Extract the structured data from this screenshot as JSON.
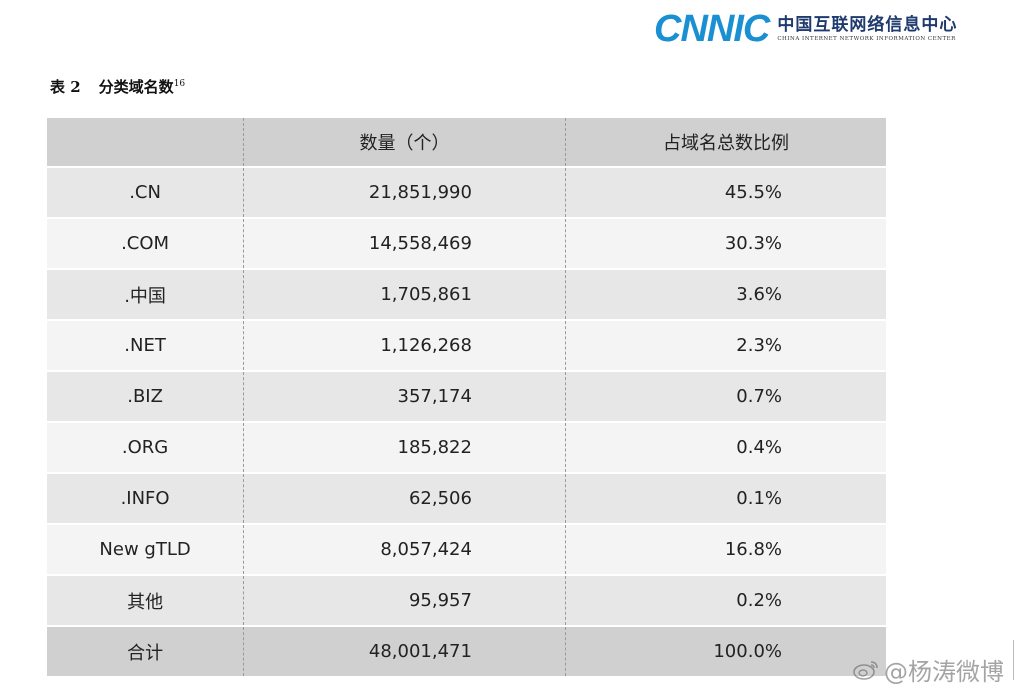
{
  "header": {
    "logo_mark": "CNNIC",
    "logo_cn": "中国互联网络信息中心",
    "logo_en": "CHINA INTERNET NETWORK INFORMATION CENTER"
  },
  "caption": {
    "number": "表 2",
    "title": "分类域名数",
    "footnote": "16"
  },
  "table": {
    "headers": [
      "",
      "数量（个）",
      "占域名总数比例"
    ],
    "rows": [
      {
        "name": ".CN",
        "count": "21,851,990",
        "share": "45.5%"
      },
      {
        "name": ".COM",
        "count": "14,558,469",
        "share": "30.3%"
      },
      {
        "name": ".中国",
        "count": "1,705,861",
        "share": "3.6%"
      },
      {
        "name": ".NET",
        "count": "1,126,268",
        "share": "2.3%"
      },
      {
        "name": ".BIZ",
        "count": "357,174",
        "share": "0.7%"
      },
      {
        "name": ".ORG",
        "count": "185,822",
        "share": "0.4%"
      },
      {
        "name": ".INFO",
        "count": "62,506",
        "share": "0.1%"
      },
      {
        "name": "New gTLD",
        "count": "8,057,424",
        "share": "16.8%"
      },
      {
        "name": "其他",
        "count": "95,957",
        "share": "0.2%"
      }
    ],
    "total": {
      "name": "合计",
      "count": "48,001,471",
      "share": "100.0%"
    }
  },
  "watermark": {
    "text": "@杨涛微博",
    "icon": "weibo-icon"
  }
}
